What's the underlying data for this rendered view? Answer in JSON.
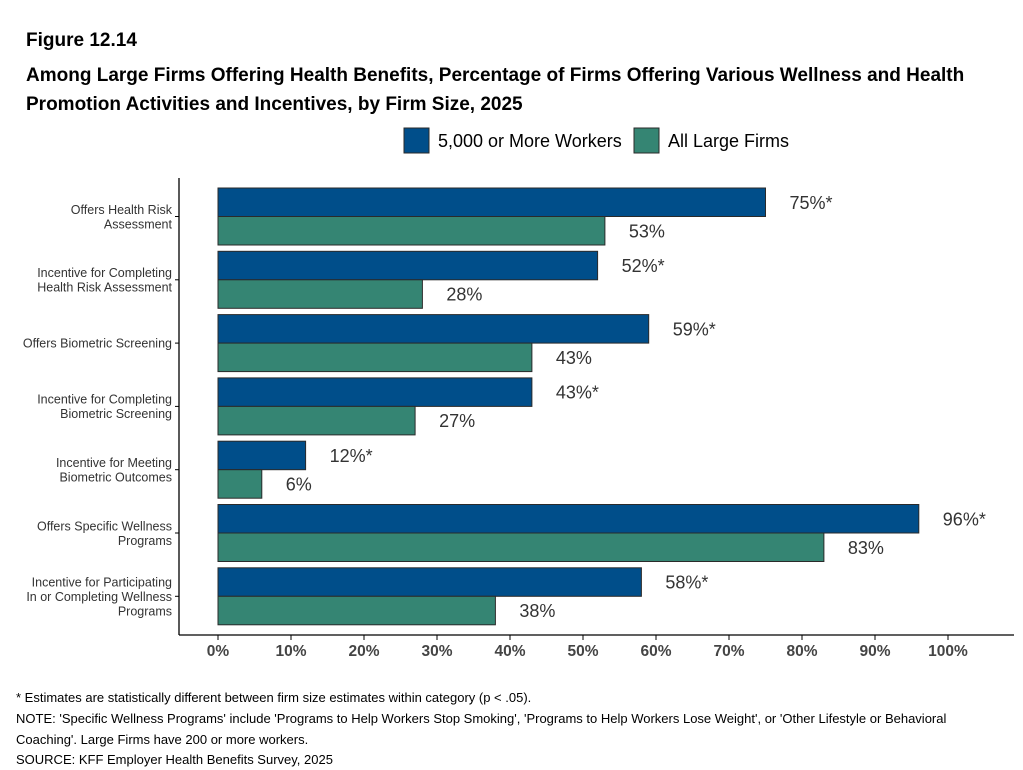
{
  "figure_label": "Figure 12.14",
  "title": "Among Large Firms Offering Health Benefits, Percentage of Firms Offering Various Wellness and Health Promotion Activities and Incentives, by Firm Size, 2025",
  "footnotes": {
    "significance": "* Estimates are statistically different between firm size estimates within category (p < .05).",
    "note": "NOTE: 'Specific Wellness Programs' include 'Programs to Help Workers Stop Smoking', 'Programs to Help Workers Lose Weight', or 'Other Lifestyle or Behavioral Coaching'. Large Firms have 200 or more workers.",
    "source": "SOURCE: KFF Employer Health Benefits Survey, 2025"
  },
  "colors": {
    "series_1": "#004e8a",
    "series_2": "#358573",
    "axis": "#000000",
    "bar_outline": "#2a2a2a"
  },
  "chart_data": {
    "type": "bar",
    "orientation": "horizontal",
    "categories": [
      [
        "Offers Health Risk",
        "Assessment"
      ],
      [
        "Incentive for Completing",
        "Health Risk Assessment"
      ],
      [
        "Offers Biometric Screening"
      ],
      [
        "Incentive for Completing",
        "Biometric Screening"
      ],
      [
        "Incentive for Meeting",
        "Biometric Outcomes"
      ],
      [
        "Offers Specific Wellness",
        "Programs"
      ],
      [
        "Incentive for Participating",
        "In or Completing Wellness",
        "Programs"
      ]
    ],
    "series": [
      {
        "name": "5,000 or More Workers",
        "values": [
          75,
          52,
          59,
          43,
          12,
          96,
          58
        ],
        "labels": [
          "75%*",
          "52%*",
          "59%*",
          "43%*",
          "12%*",
          "96%*",
          "58%*"
        ]
      },
      {
        "name": "All Large Firms",
        "values": [
          53,
          28,
          43,
          27,
          6,
          83,
          38
        ],
        "labels": [
          "53%",
          "28%",
          "43%",
          "27%",
          "6%",
          "83%",
          "38%"
        ]
      }
    ],
    "xlim": [
      0,
      100
    ],
    "ticks": [
      0,
      10,
      20,
      30,
      40,
      50,
      60,
      70,
      80,
      90,
      100
    ],
    "tick_labels": [
      "0%",
      "10%",
      "20%",
      "30%",
      "40%",
      "50%",
      "60%",
      "70%",
      "80%",
      "90%",
      "100%"
    ],
    "legend_position": "top",
    "grid": false
  }
}
